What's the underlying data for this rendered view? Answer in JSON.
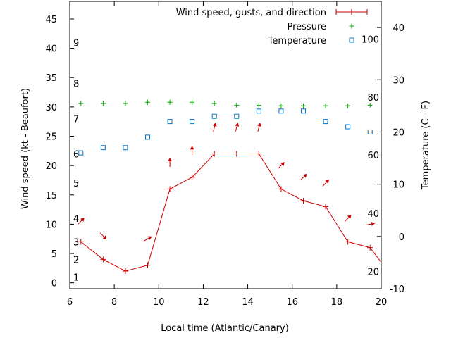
{
  "chart_data": {
    "type": "line",
    "xlabel": "Local time (Atlantic/Canary)",
    "ylabel": "Wind speed (kt - Beaufort)",
    "y2label": "Temperature (C - F)",
    "xlim": [
      6,
      20
    ],
    "ylim": [
      -1,
      48
    ],
    "y2lim": [
      -10,
      45
    ],
    "x_ticks": [
      "6",
      "8",
      "10",
      "12",
      "14",
      "16",
      "18",
      "20"
    ],
    "y_ticks": [
      "0",
      "5",
      "10",
      "15",
      "20",
      "25",
      "30",
      "35",
      "40",
      "45"
    ],
    "y2_ticks": [
      "-10",
      "0",
      "10",
      "20",
      "30",
      "40"
    ],
    "beaufort_labels": [
      {
        "text": "1",
        "y": 1
      },
      {
        "text": "2",
        "y": 4
      },
      {
        "text": "3",
        "y": 7
      },
      {
        "text": "4",
        "y": 11
      },
      {
        "text": "5",
        "y": 17
      },
      {
        "text": "6",
        "y": 22
      },
      {
        "text": "7",
        "y": 28
      },
      {
        "text": "8",
        "y": 34
      },
      {
        "text": "9",
        "y": 41
      }
    ],
    "fahrenheit_labels": [
      {
        "text": "20",
        "y2": -6.7
      },
      {
        "text": "40",
        "y2": 4.4
      },
      {
        "text": "60",
        "y2": 15.6
      },
      {
        "text": "80",
        "y2": 26.7
      },
      {
        "text": "100",
        "y2": 37.8
      }
    ],
    "legend_position": "top-right",
    "series": [
      {
        "name": "Wind speed, gusts, and direction",
        "color": "#cc0000",
        "x": [
          6.5,
          7.5,
          8.5,
          9.5,
          10.5,
          11.5,
          12.5,
          13.5,
          14.5,
          15.5,
          16.5,
          17.5,
          18.5,
          19.5,
          20.0
        ],
        "values": [
          7,
          4,
          2,
          3,
          16,
          18,
          22,
          22,
          22,
          16,
          14,
          13,
          7,
          6,
          3.5
        ]
      },
      {
        "name": "Pressure",
        "color": "#00aa00",
        "x": [
          6.5,
          7.5,
          8.5,
          9.5,
          10.5,
          11.5,
          12.5,
          13.5,
          14.5,
          15.5,
          16.5,
          17.5,
          18.5,
          19.5
        ],
        "values": [
          30.6,
          30.6,
          30.6,
          30.8,
          30.8,
          30.8,
          30.6,
          30.3,
          30.3,
          30.2,
          30.2,
          30.2,
          30.2,
          30.3
        ]
      },
      {
        "name": "Temperature",
        "color": "#0077cc",
        "axis": "y2",
        "x": [
          6.5,
          7.5,
          8.5,
          9.5,
          10.5,
          11.5,
          12.5,
          13.5,
          14.5,
          15.5,
          16.5,
          17.5,
          18.5,
          19.5
        ],
        "values": [
          16,
          17,
          17,
          19,
          22,
          22,
          23,
          23,
          24,
          24,
          24,
          22,
          21,
          20
        ]
      }
    ],
    "gusts_direction": [
      {
        "x": 6.5,
        "y": 10.5,
        "angle": 45
      },
      {
        "x": 7.5,
        "y": 8,
        "angle": 135
      },
      {
        "x": 9.5,
        "y": 7.5,
        "angle": 60
      },
      {
        "x": 10.5,
        "y": 20.5,
        "angle": 0
      },
      {
        "x": 11.5,
        "y": 22.5,
        "angle": 0
      },
      {
        "x": 12.5,
        "y": 26.5,
        "angle": 15
      },
      {
        "x": 13.5,
        "y": 26.5,
        "angle": 15
      },
      {
        "x": 14.5,
        "y": 26.5,
        "angle": 15
      },
      {
        "x": 15.5,
        "y": 20,
        "angle": 45
      },
      {
        "x": 16.5,
        "y": 18,
        "angle": 45
      },
      {
        "x": 17.5,
        "y": 17,
        "angle": 45
      },
      {
        "x": 18.5,
        "y": 11,
        "angle": 45
      },
      {
        "x": 19.5,
        "y": 10,
        "angle": 80
      }
    ]
  }
}
